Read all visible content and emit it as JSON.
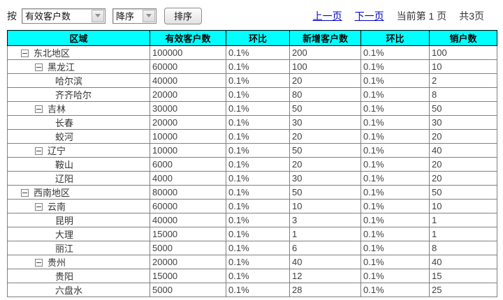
{
  "toolbar": {
    "by_label": "按",
    "sort_field_select": {
      "value": "有效客户数"
    },
    "sort_order_select": {
      "value": "降序"
    },
    "sort_button_label": "排序"
  },
  "pagination": {
    "prev_label": "上一页",
    "next_label": "下一页",
    "current_page_text": "当前第 1 页",
    "total_pages_text": "共3页"
  },
  "table": {
    "columns": [
      "区域",
      "有效客户数",
      "环比",
      "新增客户数",
      "环比",
      "销户数"
    ],
    "rows": [
      {
        "region": "东北地区",
        "level": 1,
        "expandable": true,
        "values": [
          "100000",
          "0.1%",
          "200",
          "0.1%",
          "100"
        ]
      },
      {
        "region": "黑龙江",
        "level": 2,
        "expandable": true,
        "values": [
          "60000",
          "0.1%",
          "100",
          "0.1%",
          "10"
        ]
      },
      {
        "region": "哈尔滨",
        "level": 3,
        "expandable": false,
        "values": [
          "40000",
          "0.1%",
          "20",
          "0.1%",
          "2"
        ]
      },
      {
        "region": "齐齐哈尔",
        "level": 3,
        "expandable": false,
        "values": [
          "20000",
          "0.1%",
          "80",
          "0.1%",
          "8"
        ]
      },
      {
        "region": "吉林",
        "level": 2,
        "expandable": true,
        "values": [
          "30000",
          "0.1%",
          "50",
          "0.1%",
          "50"
        ]
      },
      {
        "region": "长春",
        "level": 3,
        "expandable": false,
        "values": [
          "20000",
          "0.1%",
          "30",
          "0.1%",
          "30"
        ]
      },
      {
        "region": "蛟河",
        "level": 3,
        "expandable": false,
        "values": [
          "10000",
          "0.1%",
          "20",
          "0.1%",
          "20"
        ]
      },
      {
        "region": "辽宁",
        "level": 2,
        "expandable": true,
        "values": [
          "10000",
          "0.1%",
          "50",
          "0.1%",
          "40"
        ]
      },
      {
        "region": "鞍山",
        "level": 3,
        "expandable": false,
        "values": [
          "6000",
          "0.1%",
          "20",
          "0.1%",
          "20"
        ]
      },
      {
        "region": "辽阳",
        "level": 3,
        "expandable": false,
        "values": [
          "4000",
          "0.1%",
          "30",
          "0.1%",
          "20"
        ]
      },
      {
        "region": "西南地区",
        "level": 1,
        "expandable": true,
        "values": [
          "80000",
          "0.1%",
          "50",
          "0.1%",
          "50"
        ]
      },
      {
        "region": "云南",
        "level": 2,
        "expandable": true,
        "values": [
          "60000",
          "0.1%",
          "10",
          "0.1%",
          "10"
        ]
      },
      {
        "region": "昆明",
        "level": 3,
        "expandable": false,
        "values": [
          "40000",
          "0.1%",
          "3",
          "0.1%",
          "1"
        ]
      },
      {
        "region": "大理",
        "level": 3,
        "expandable": false,
        "values": [
          "15000",
          "0.1%",
          "1",
          "0.1%",
          "1"
        ]
      },
      {
        "region": "丽江",
        "level": 3,
        "expandable": false,
        "values": [
          "5000",
          "0.1%",
          "6",
          "0.1%",
          "8"
        ]
      },
      {
        "region": "贵州",
        "level": 2,
        "expandable": true,
        "values": [
          "20000",
          "0.1%",
          "40",
          "0.1%",
          "40"
        ]
      },
      {
        "region": "贵阳",
        "level": 3,
        "expandable": false,
        "values": [
          "15000",
          "0.1%",
          "12",
          "0.1%",
          "15"
        ]
      },
      {
        "region": "六盘水",
        "level": 3,
        "expandable": false,
        "values": [
          "5000",
          "0.1%",
          "28",
          "0.1%",
          "25"
        ]
      }
    ]
  },
  "colors": {
    "header_bg": "#00ffff",
    "link": "#0000cc",
    "grid_border": "#808080",
    "cell_text": "#404040"
  }
}
